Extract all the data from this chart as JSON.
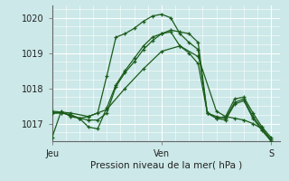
{
  "xlabel": "Pression niveau de la mer( hPa )",
  "background_color": "#cce8e8",
  "plot_bg_color": "#cce8e8",
  "grid_color": "#ffffff",
  "line_color": "#1a5c1a",
  "ylim": [
    1016.5,
    1020.35
  ],
  "xlim": [
    0,
    50
  ],
  "yticks": [
    1017,
    1018,
    1019,
    1020
  ],
  "xtick_positions": [
    0,
    24,
    48
  ],
  "xtick_labels": [
    "Jeu",
    "Ven",
    "S"
  ],
  "series": [
    {
      "x": [
        0,
        2,
        4,
        6,
        8,
        10,
        12,
        14,
        16,
        18,
        20,
        22,
        24,
        26,
        28,
        30,
        32,
        34,
        36,
        38,
        40,
        42,
        44,
        46,
        48
      ],
      "y": [
        1016.6,
        1017.35,
        1017.2,
        1017.15,
        1017.2,
        1017.3,
        1018.35,
        1019.45,
        1019.55,
        1019.7,
        1019.9,
        1020.05,
        1020.1,
        1020.0,
        1019.55,
        1019.3,
        1019.1,
        1017.3,
        1017.15,
        1017.2,
        1017.7,
        1017.75,
        1017.3,
        1016.9,
        1016.6
      ]
    },
    {
      "x": [
        0,
        2,
        4,
        6,
        8,
        10,
        12,
        14,
        16,
        18,
        20,
        22,
        24,
        26,
        28,
        30,
        32,
        34,
        36,
        38,
        40,
        42,
        44,
        46,
        48
      ],
      "y": [
        1017.3,
        1017.3,
        1017.25,
        1017.15,
        1017.1,
        1017.1,
        1017.3,
        1018.05,
        1018.45,
        1018.75,
        1019.1,
        1019.35,
        1019.55,
        1019.65,
        1019.6,
        1019.55,
        1019.3,
        1017.3,
        1017.2,
        1017.15,
        1017.6,
        1017.7,
        1017.2,
        1016.85,
        1016.55
      ]
    },
    {
      "x": [
        0,
        2,
        4,
        6,
        8,
        10,
        12,
        14,
        16,
        18,
        20,
        22,
        24,
        26,
        28,
        30,
        32,
        34,
        36,
        38,
        40,
        42,
        44,
        46,
        48
      ],
      "y": [
        1017.3,
        1017.3,
        1017.25,
        1017.15,
        1016.9,
        1016.85,
        1017.45,
        1018.1,
        1018.5,
        1018.85,
        1019.2,
        1019.45,
        1019.55,
        1019.6,
        1019.2,
        1019.0,
        1018.7,
        1017.3,
        1017.15,
        1017.1,
        1017.55,
        1017.65,
        1017.15,
        1016.8,
        1016.5
      ]
    },
    {
      "x": [
        0,
        4,
        8,
        12,
        16,
        20,
        24,
        28,
        32,
        36,
        38,
        40,
        42,
        44,
        46,
        48
      ],
      "y": [
        1017.35,
        1017.3,
        1017.2,
        1017.4,
        1018.0,
        1018.55,
        1019.05,
        1019.2,
        1018.9,
        1017.35,
        1017.2,
        1017.15,
        1017.1,
        1017.0,
        1016.85,
        1016.5
      ]
    }
  ]
}
